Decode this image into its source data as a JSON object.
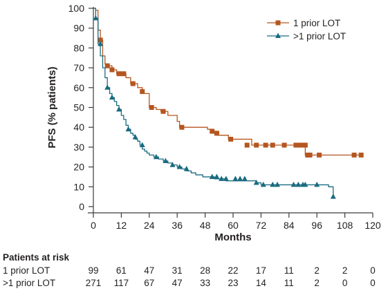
{
  "chart_data": {
    "type": "line",
    "xlabel": "Months",
    "ylabel": "PFS (% patients)",
    "xlim": [
      0,
      120
    ],
    "ylim": [
      0,
      100
    ],
    "x_ticks": [
      0,
      12,
      24,
      36,
      48,
      60,
      72,
      84,
      96,
      108,
      120
    ],
    "y_ticks": [
      0,
      10,
      20,
      30,
      40,
      50,
      60,
      70,
      80,
      90,
      100
    ],
    "grid": false,
    "legend_position": "top-right",
    "series": [
      {
        "name": "1 prior LOT",
        "color": "#b5561f",
        "marker": "square",
        "steps": [
          [
            0,
            100
          ],
          [
            1,
            99
          ],
          [
            2,
            89
          ],
          [
            3,
            84
          ],
          [
            4,
            76
          ],
          [
            5,
            72
          ],
          [
            6,
            71
          ],
          [
            8,
            69
          ],
          [
            10,
            67
          ],
          [
            14,
            65
          ],
          [
            16,
            62
          ],
          [
            19,
            60
          ],
          [
            21,
            57
          ],
          [
            24,
            50
          ],
          [
            27,
            49
          ],
          [
            29,
            48
          ],
          [
            32,
            46
          ],
          [
            36,
            43
          ],
          [
            37,
            40
          ],
          [
            49,
            39
          ],
          [
            51,
            37
          ],
          [
            53,
            36
          ],
          [
            58,
            34
          ],
          [
            68,
            31
          ],
          [
            91,
            26
          ],
          [
            116,
            26
          ]
        ],
        "censored": [
          [
            3,
            84
          ],
          [
            6,
            71
          ],
          [
            8,
            69
          ],
          [
            11,
            67
          ],
          [
            13,
            67
          ],
          [
            17,
            62
          ],
          [
            21,
            58
          ],
          [
            25,
            50
          ],
          [
            30,
            48
          ],
          [
            38,
            40
          ],
          [
            51,
            38
          ],
          [
            53,
            37
          ],
          [
            59,
            34
          ],
          [
            66,
            31
          ],
          [
            70,
            31
          ],
          [
            74,
            31
          ],
          [
            77,
            31
          ],
          [
            82,
            31
          ],
          [
            87,
            31
          ],
          [
            89,
            31
          ],
          [
            90,
            31
          ],
          [
            91,
            31
          ],
          [
            92,
            26
          ],
          [
            93,
            26
          ],
          [
            97,
            26
          ],
          [
            112,
            26
          ],
          [
            115,
            26
          ]
        ]
      },
      {
        "name": ">1 prior LOT",
        "color": "#1a6b80",
        "marker": "triangle",
        "steps": [
          [
            0,
            100
          ],
          [
            1,
            95
          ],
          [
            2,
            82
          ],
          [
            3,
            76
          ],
          [
            4,
            70
          ],
          [
            5,
            65
          ],
          [
            6,
            60
          ],
          [
            7,
            57
          ],
          [
            8,
            55
          ],
          [
            9,
            53
          ],
          [
            10,
            51
          ],
          [
            11,
            49
          ],
          [
            12,
            46
          ],
          [
            13,
            44
          ],
          [
            14,
            41
          ],
          [
            15,
            39
          ],
          [
            16,
            37
          ],
          [
            17,
            36
          ],
          [
            18,
            34
          ],
          [
            19,
            33
          ],
          [
            20,
            31
          ],
          [
            21,
            29
          ],
          [
            22,
            28
          ],
          [
            23,
            27
          ],
          [
            24,
            26
          ],
          [
            26,
            25
          ],
          [
            28,
            24
          ],
          [
            30,
            23
          ],
          [
            32,
            22
          ],
          [
            34,
            21
          ],
          [
            36,
            20
          ],
          [
            38,
            19
          ],
          [
            40,
            18
          ],
          [
            42,
            17
          ],
          [
            44,
            16
          ],
          [
            47,
            15
          ],
          [
            52,
            14
          ],
          [
            57,
            13
          ],
          [
            70,
            12
          ],
          [
            72,
            11
          ],
          [
            100,
            11
          ],
          [
            101,
            10
          ],
          [
            103,
            5
          ]
        ],
        "censored": [
          [
            1,
            95
          ],
          [
            3,
            82
          ],
          [
            6,
            60
          ],
          [
            8,
            55
          ],
          [
            11,
            49
          ],
          [
            15,
            39
          ],
          [
            18,
            35
          ],
          [
            21,
            31
          ],
          [
            27,
            25
          ],
          [
            31,
            23
          ],
          [
            34,
            21
          ],
          [
            37,
            20
          ],
          [
            40,
            19
          ],
          [
            51,
            15
          ],
          [
            53,
            15
          ],
          [
            55,
            14
          ],
          [
            57,
            14
          ],
          [
            61,
            14
          ],
          [
            63,
            14
          ],
          [
            65,
            14
          ],
          [
            70,
            12
          ],
          [
            73,
            11
          ],
          [
            77,
            11
          ],
          [
            79,
            11
          ],
          [
            86,
            11
          ],
          [
            88,
            11
          ],
          [
            90,
            11
          ],
          [
            91,
            11
          ],
          [
            96,
            11
          ],
          [
            103,
            5
          ]
        ]
      }
    ]
  },
  "risk_table": {
    "title": "Patients at risk",
    "rows": [
      {
        "label": "1 prior LOT",
        "values": [
          "99",
          "61",
          "47",
          "31",
          "28",
          "22",
          "17",
          "11",
          "2",
          "2",
          "0"
        ]
      },
      {
        "label": ">1 prior LOT",
        "values": [
          "271",
          "117",
          "67",
          "47",
          "33",
          "23",
          "14",
          "11",
          "2",
          "0",
          "0"
        ]
      }
    ]
  }
}
